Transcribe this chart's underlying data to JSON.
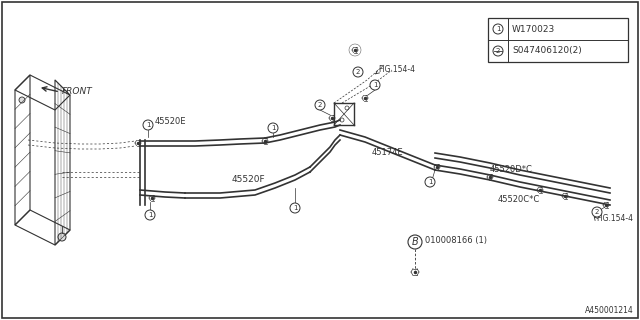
{
  "bg_color": "#ffffff",
  "line_color": "#333333",
  "diagram_id": "A450001214",
  "fig154_4_label": "FIG.154-4",
  "b_label": "010008166 (1)",
  "part_45520C": "45520C*C",
  "part_45520D": "45520D*C",
  "part_45520E": "45520E",
  "part_45520F": "45520F",
  "part_45174E": "45174E",
  "front_label": "FRONT",
  "legend": [
    {
      "num": "1",
      "code": "W170023"
    },
    {
      "num": "2",
      "code": "S047406120(2)"
    }
  ]
}
